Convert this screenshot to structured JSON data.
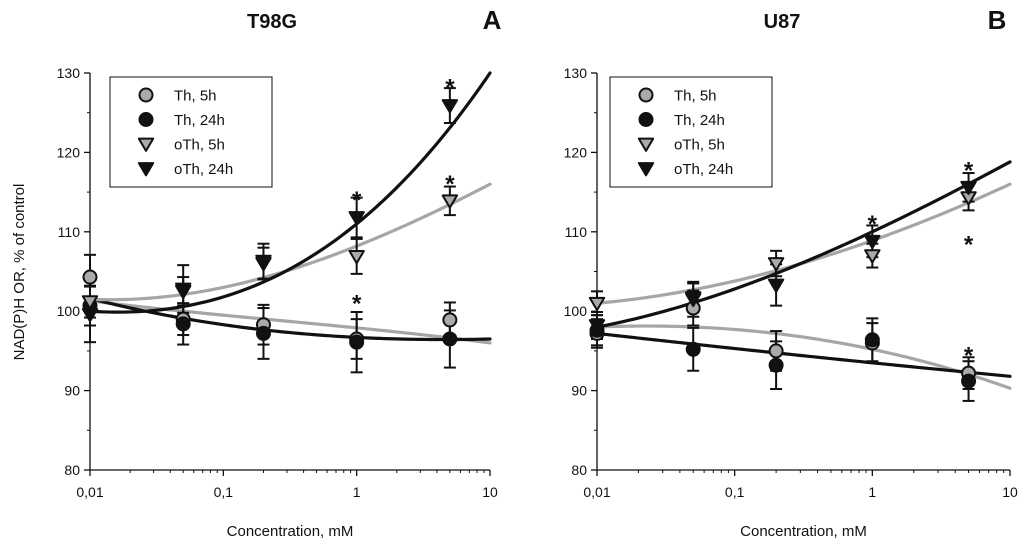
{
  "chart_data": [
    {
      "type": "scatter",
      "title": "T98G",
      "panel_letter": "A",
      "xlabel": "Concentration, mM",
      "ylabel": "NAD(P)H OR, % of control",
      "xscale": "log",
      "xlim": [
        0.01,
        10
      ],
      "ylim": [
        80,
        130
      ],
      "xticks": [
        0.01,
        0.1,
        1,
        10
      ],
      "xtick_labels": [
        "0,01",
        "0,1",
        "1",
        "10"
      ],
      "yticks": [
        80,
        90,
        100,
        110,
        120,
        130
      ],
      "ytick_labels": [
        "80",
        "90",
        "100",
        "110",
        "120",
        "130"
      ],
      "legend_position": "top-left",
      "x": [
        0.01,
        0.05,
        0.2,
        1,
        5
      ],
      "series": [
        {
          "name": "Th, 5h",
          "marker": "circle",
          "fill": "#aaaaaa",
          "line_color": "#a6a6a6",
          "values": [
            104.3,
            99.0,
            98.3,
            96.5,
            98.9
          ],
          "errors": [
            2.8,
            2.0,
            2.5,
            2.5,
            2.2
          ],
          "fit": [
            101.3,
            99.5,
            97.9,
            96.0
          ]
        },
        {
          "name": "Th, 24h",
          "marker": "circle",
          "fill": "#111111",
          "line_color": "#111111",
          "values": [
            100.7,
            98.4,
            97.2,
            96.1,
            96.5
          ],
          "errors": [
            2.5,
            2.6,
            3.2,
            3.8,
            3.6
          ],
          "fit": [
            101.6,
            98.3,
            96.7,
            96.5
          ]
        },
        {
          "name": "oTh, 5h",
          "marker": "triangle-down",
          "fill": "#aaaaaa",
          "line_color": "#a6a6a6",
          "values": [
            101.2,
            102.5,
            106.0,
            106.9,
            113.9
          ],
          "errors": [
            2.0,
            1.8,
            2.0,
            2.2,
            1.8
          ],
          "fit": [
            101.5,
            103.0,
            108.2,
            116.0
          ]
        },
        {
          "name": "oTh, 24h",
          "marker": "triangle-down",
          "fill": "#111111",
          "line_color": "#111111",
          "values": [
            99.6,
            102.8,
            106.3,
            111.8,
            125.9
          ],
          "errors": [
            3.5,
            3.0,
            2.2,
            2.5,
            2.2
          ],
          "fit": [
            100.0,
            101.8,
            111.0,
            130.0
          ]
        }
      ],
      "annotations": [
        {
          "text": "*",
          "x": 1,
          "y": 114.5
        },
        {
          "text": "*",
          "x": 1,
          "y": 101.5
        },
        {
          "text": "*",
          "x": 5,
          "y": 128.7
        },
        {
          "text": "*",
          "x": 5,
          "y": 116.5
        }
      ]
    },
    {
      "type": "scatter",
      "title": "U87",
      "panel_letter": "B",
      "xlabel": "Concentration, mM",
      "xscale": "log",
      "xlim": [
        0.01,
        10
      ],
      "ylim": [
        80,
        130
      ],
      "xticks": [
        0.01,
        0.1,
        1,
        10
      ],
      "xtick_labels": [
        "0,01",
        "0,1",
        "1",
        "10"
      ],
      "yticks": [
        80,
        90,
        100,
        110,
        120,
        130
      ],
      "ytick_labels": [
        "80",
        "90",
        "100",
        "110",
        "120",
        "130"
      ],
      "legend_position": "top-left",
      "x": [
        0.01,
        0.05,
        0.2,
        1,
        5
      ],
      "series": [
        {
          "name": "Th, 5h",
          "marker": "circle",
          "fill": "#aaaaaa",
          "line_color": "#a6a6a6",
          "values": [
            97.2,
            100.4,
            95.0,
            96.0,
            92.2
          ],
          "errors": [
            1.8,
            2.2,
            2.5,
            2.5,
            2.0
          ],
          "fit": [
            98.0,
            97.7,
            95.2,
            90.3
          ]
        },
        {
          "name": "Th, 24h",
          "marker": "circle",
          "fill": "#111111",
          "line_color": "#111111",
          "values": [
            97.6,
            95.2,
            93.2,
            96.4,
            91.2
          ],
          "errors": [
            1.9,
            2.7,
            3.0,
            2.7,
            2.5
          ],
          "fit": [
            97.2,
            95.3,
            93.5,
            91.8
          ]
        },
        {
          "name": "oTh, 5h",
          "marker": "triangle-down",
          "fill": "#aaaaaa",
          "line_color": "#a6a6a6",
          "values": [
            101.0,
            101.7,
            106.0,
            107.0,
            114.3
          ],
          "errors": [
            1.5,
            1.8,
            1.6,
            1.5,
            1.6
          ],
          "fit": [
            101.0,
            103.8,
            108.9,
            116.0
          ]
        },
        {
          "name": "oTh, 24h",
          "marker": "triangle-down",
          "fill": "#111111",
          "line_color": "#111111",
          "values": [
            98.2,
            101.5,
            103.3,
            108.8,
            115.6
          ],
          "errors": [
            1.7,
            2.2,
            2.6,
            2.0,
            1.8
          ],
          "fit": [
            98.0,
            102.8,
            110.0,
            118.8
          ]
        }
      ],
      "annotations": [
        {
          "text": "*",
          "x": 1,
          "y": 111.5
        },
        {
          "text": "*",
          "x": 5,
          "y": 118.2
        },
        {
          "text": "*",
          "x": 5,
          "y": 108.9
        },
        {
          "text": "*",
          "x": 5,
          "y": 94.9
        }
      ]
    }
  ]
}
